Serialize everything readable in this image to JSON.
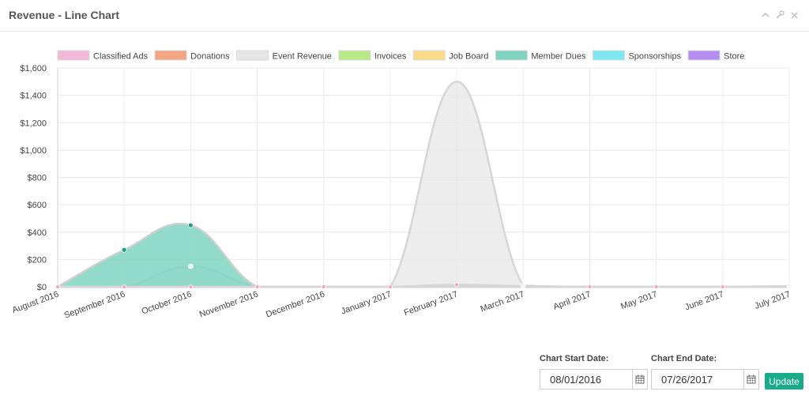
{
  "panel": {
    "title": "Revenue - Line Chart"
  },
  "toolbar": {
    "collapse_icon": "chevron-up-icon",
    "settings_icon": "wrench-icon",
    "close_icon": "close-icon"
  },
  "date_range": {
    "start_label": "Chart Start Date:",
    "start_value": "08/01/2016",
    "end_label": "Chart End Date:",
    "end_value": "07/26/2017",
    "calendar_icon": "calendar-icon",
    "update_label": "Update",
    "button_color": "#1aab8b"
  },
  "chart_data": {
    "type": "area",
    "title": "",
    "xlabel": "",
    "ylabel": "",
    "categories": [
      "August 2016",
      "September 2016",
      "October 2016",
      "November 2016",
      "December 2016",
      "January 2017",
      "February 2017",
      "March 2017",
      "April 2017",
      "May 2017",
      "June 2017",
      "July 2017"
    ],
    "yticks": [
      "$0",
      "$200",
      "$400",
      "$600",
      "$800",
      "$1,000",
      "$1,200",
      "$1,400",
      "$1,600"
    ],
    "ylim": [
      0,
      1600
    ],
    "grid": true,
    "legend_position": "top",
    "series": [
      {
        "name": "Classified Ads",
        "color": "#f2b8d8",
        "values": [
          0,
          0,
          0,
          0,
          0,
          0,
          15,
          5,
          0,
          0,
          0,
          0
        ]
      },
      {
        "name": "Donations",
        "color": "#f4a582",
        "values": [
          0,
          0,
          0,
          0,
          0,
          0,
          0,
          0,
          0,
          0,
          0,
          0
        ]
      },
      {
        "name": "Event Revenue",
        "color": "#e6e6e6",
        "values": [
          0,
          0,
          150,
          0,
          0,
          0,
          1500,
          10,
          0,
          0,
          0,
          5
        ]
      },
      {
        "name": "Invoices",
        "color": "#b8e986",
        "values": [
          0,
          0,
          0,
          0,
          0,
          0,
          0,
          0,
          0,
          0,
          0,
          0
        ]
      },
      {
        "name": "Job Board",
        "color": "#f8dc8a",
        "values": [
          0,
          0,
          0,
          0,
          0,
          0,
          0,
          0,
          0,
          0,
          0,
          0
        ]
      },
      {
        "name": "Member Dues",
        "color": "#7fd3bf",
        "values": [
          0,
          270,
          450,
          0,
          0,
          0,
          0,
          0,
          0,
          0,
          0,
          0
        ]
      },
      {
        "name": "Sponsorships",
        "color": "#7ee8f2",
        "values": [
          0,
          0,
          0,
          0,
          0,
          0,
          0,
          0,
          0,
          0,
          0,
          0
        ]
      },
      {
        "name": "Store",
        "color": "#b38ef0",
        "values": [
          0,
          0,
          0,
          0,
          0,
          0,
          0,
          0,
          0,
          0,
          0,
          0
        ]
      }
    ]
  }
}
